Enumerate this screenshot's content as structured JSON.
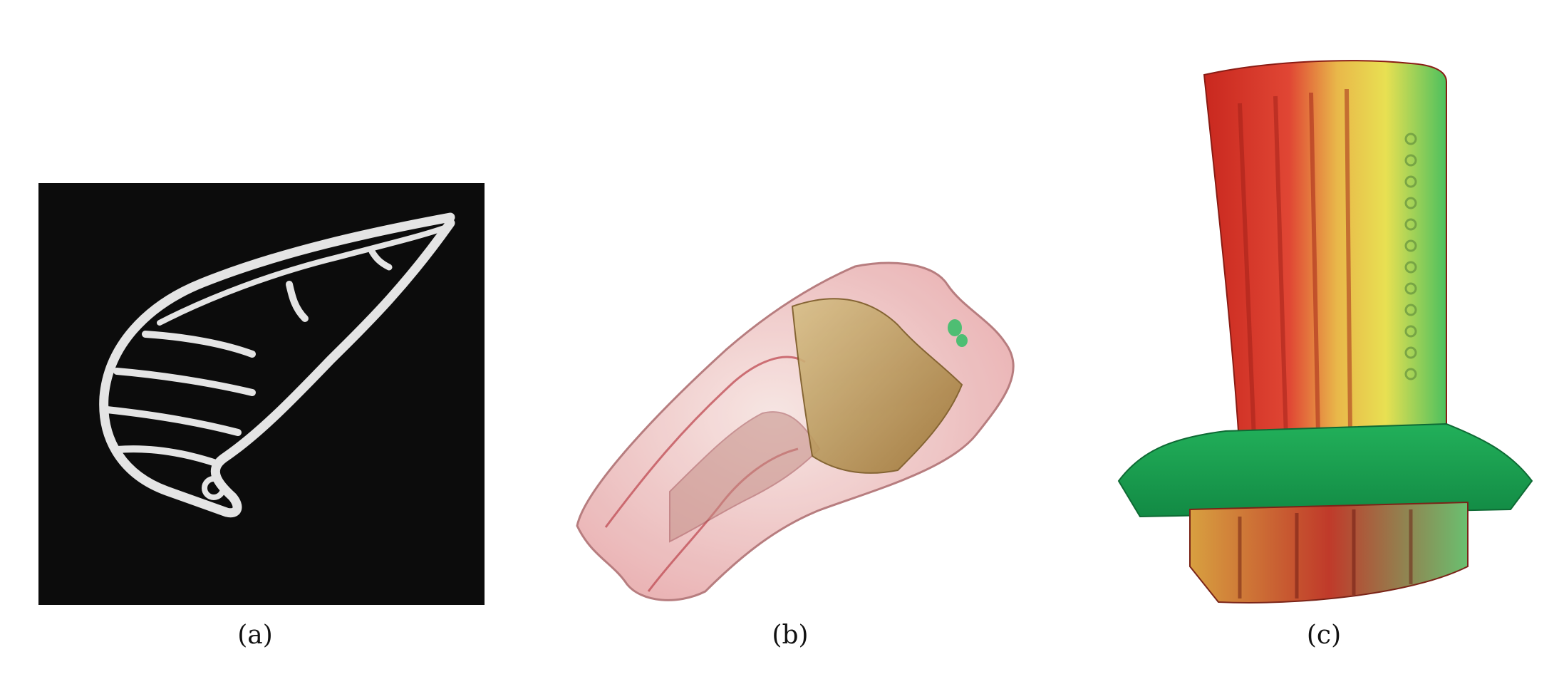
{
  "figure": {
    "panels": [
      {
        "id": "a",
        "caption": "(a)",
        "depicts": "blade-cross-section-ct-slice",
        "background": "#0c0c0c",
        "material": "#e6e6e6"
      },
      {
        "id": "b",
        "caption": "(b)",
        "depicts": "tooth-volume-rendering",
        "tissue": "#e9a9aa",
        "crown": "#b89450",
        "accent": "#3dbf6b"
      },
      {
        "id": "c",
        "caption": "(c)",
        "depicts": "turbine-blade-volume-rendering",
        "colors": [
          "#d8362a",
          "#e6e04a",
          "#22b05a"
        ]
      }
    ]
  }
}
